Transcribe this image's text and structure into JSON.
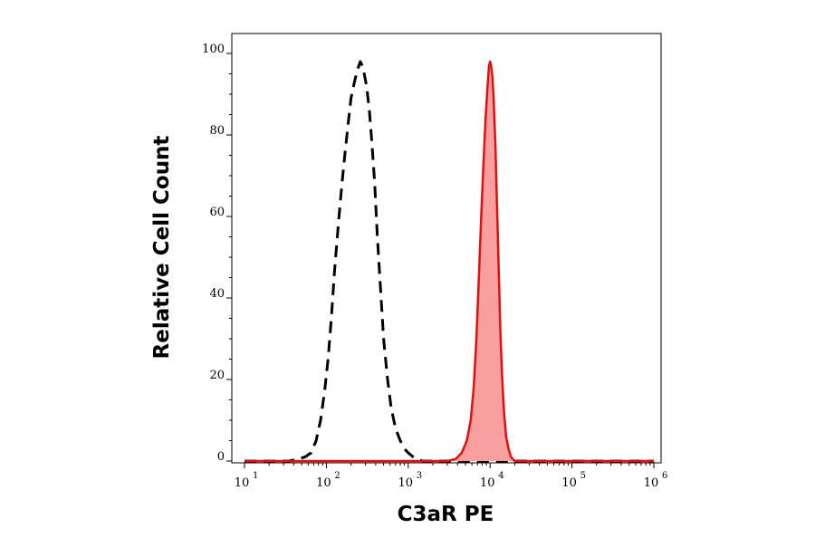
{
  "chart_data": {
    "type": "area",
    "xlabel": "C3aR PE",
    "ylabel": "Relative Cell Count",
    "x_scale": "log",
    "xlim": [
      10,
      1000000
    ],
    "ylim": [
      0,
      100
    ],
    "x_ticks": [
      {
        "base": "10",
        "exp": "1",
        "value": 10
      },
      {
        "base": "10",
        "exp": "2",
        "value": 100
      },
      {
        "base": "10",
        "exp": "3",
        "value": 1000
      },
      {
        "base": "10",
        "exp": "4",
        "value": 10000
      },
      {
        "base": "10",
        "exp": "5",
        "value": 100000
      },
      {
        "base": "10",
        "exp": "6",
        "value": 1000000
      }
    ],
    "y_ticks": [
      "0",
      "20",
      "40",
      "60",
      "80",
      "100"
    ],
    "grid": false,
    "series": [
      {
        "style": "dashed",
        "color": "#000000",
        "fill": "none",
        "points": [
          [
            10,
            0
          ],
          [
            35,
            0
          ],
          [
            45,
            0.5
          ],
          [
            55,
            1
          ],
          [
            65,
            2
          ],
          [
            75,
            5
          ],
          [
            85,
            10
          ],
          [
            95,
            17
          ],
          [
            105,
            25
          ],
          [
            115,
            35
          ],
          [
            125,
            46
          ],
          [
            140,
            58
          ],
          [
            155,
            68
          ],
          [
            170,
            76
          ],
          [
            185,
            83
          ],
          [
            200,
            89
          ],
          [
            220,
            93
          ],
          [
            240,
            96
          ],
          [
            260,
            98
          ],
          [
            275,
            97
          ],
          [
            290,
            95
          ],
          [
            310,
            92
          ],
          [
            335,
            86
          ],
          [
            360,
            78
          ],
          [
            390,
            68
          ],
          [
            420,
            55
          ],
          [
            460,
            42
          ],
          [
            500,
            30
          ],
          [
            560,
            20
          ],
          [
            620,
            13
          ],
          [
            700,
            8
          ],
          [
            800,
            5
          ],
          [
            900,
            3
          ],
          [
            1000,
            2
          ],
          [
            1150,
            1
          ],
          [
            1300,
            0.5
          ],
          [
            1500,
            0
          ],
          [
            1000000,
            0
          ]
        ]
      },
      {
        "style": "solid",
        "color": "#e01010",
        "fill": "#f8a0a0",
        "points": [
          [
            10,
            0
          ],
          [
            3000,
            0
          ],
          [
            3800,
            0.5
          ],
          [
            4500,
            2
          ],
          [
            5200,
            5
          ],
          [
            5800,
            10
          ],
          [
            6300,
            18
          ],
          [
            6800,
            30
          ],
          [
            7300,
            45
          ],
          [
            7800,
            60
          ],
          [
            8300,
            73
          ],
          [
            8800,
            84
          ],
          [
            9300,
            92
          ],
          [
            9700,
            97
          ],
          [
            10000,
            98
          ],
          [
            10300,
            97
          ],
          [
            10700,
            94
          ],
          [
            11100,
            88
          ],
          [
            11600,
            78
          ],
          [
            12100,
            64
          ],
          [
            12700,
            48
          ],
          [
            13300,
            33
          ],
          [
            14000,
            21
          ],
          [
            14800,
            12
          ],
          [
            15700,
            6
          ],
          [
            16800,
            3
          ],
          [
            18000,
            1
          ],
          [
            20000,
            0
          ],
          [
            1000000,
            0
          ]
        ]
      }
    ]
  }
}
